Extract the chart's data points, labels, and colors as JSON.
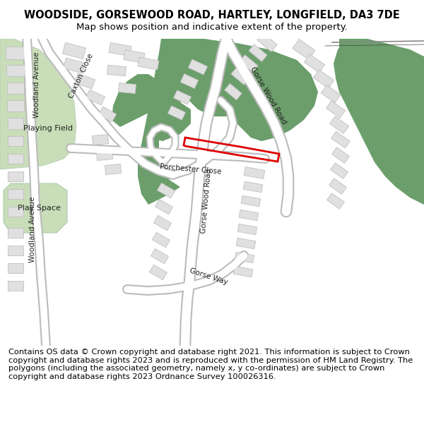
{
  "title": "WOODSIDE, GORSEWOOD ROAD, HARTLEY, LONGFIELD, DA3 7DE",
  "subtitle": "Map shows position and indicative extent of the property.",
  "footer": "Contains OS data © Crown copyright and database right 2021. This information is subject to Crown copyright and database rights 2023 and is reproduced with the permission of HM Land Registry. The polygons (including the associated geometry, namely x, y co-ordinates) are subject to Crown copyright and database rights 2023 Ordnance Survey 100026316.",
  "bg_color": "#ffffff",
  "map_bg": "#f0f0f0",
  "building_color": "#e0e0e0",
  "building_edge": "#c0c0c0",
  "road_fill": "#ffffff",
  "road_edge": "#bbbbbb",
  "green_dark": "#6b9e6b",
  "green_light": "#c8ddb8",
  "highlight_color": "#dd0000",
  "title_fontsize": 10.5,
  "subtitle_fontsize": 9.5,
  "footer_fontsize": 8.2,
  "label_fontsize": 7.5
}
